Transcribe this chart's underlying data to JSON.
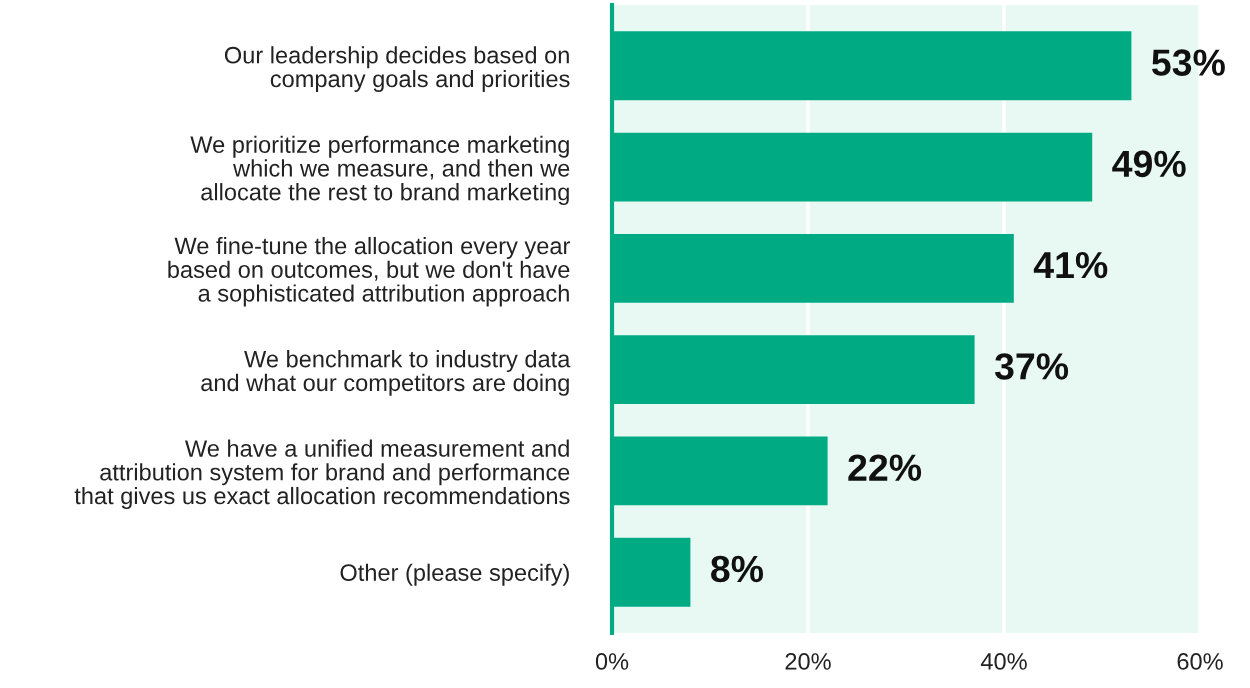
{
  "chart_data": {
    "type": "bar",
    "orientation": "horizontal",
    "categories": [
      "Our leadership decides based on\ncompany goals and priorities",
      "We prioritize performance marketing\nwhich we measure, and then we\nallocate the rest to brand marketing",
      "We fine-tune the allocation every year\nbased on outcomes, but we don't have\na sophisticated attribution approach",
      "We benchmark to industry data\nand what our competitors are doing",
      "We have a unified measurement and\nattribution system for brand and performance\nthat gives us exact allocation recommendations",
      "Other (please specify)"
    ],
    "values": [
      53,
      49,
      41,
      37,
      22,
      8
    ],
    "value_labels": [
      "53%",
      "49%",
      "41%",
      "37%",
      "22%",
      "8%"
    ],
    "color": "#00ab84",
    "xlim": [
      0,
      60
    ],
    "xticks": [
      {
        "value": 0,
        "label": "0%"
      },
      {
        "value": 20,
        "label": "20%"
      },
      {
        "value": 40,
        "label": "40%"
      },
      {
        "value": 60,
        "label": "60%"
      }
    ],
    "grid": "x"
  }
}
